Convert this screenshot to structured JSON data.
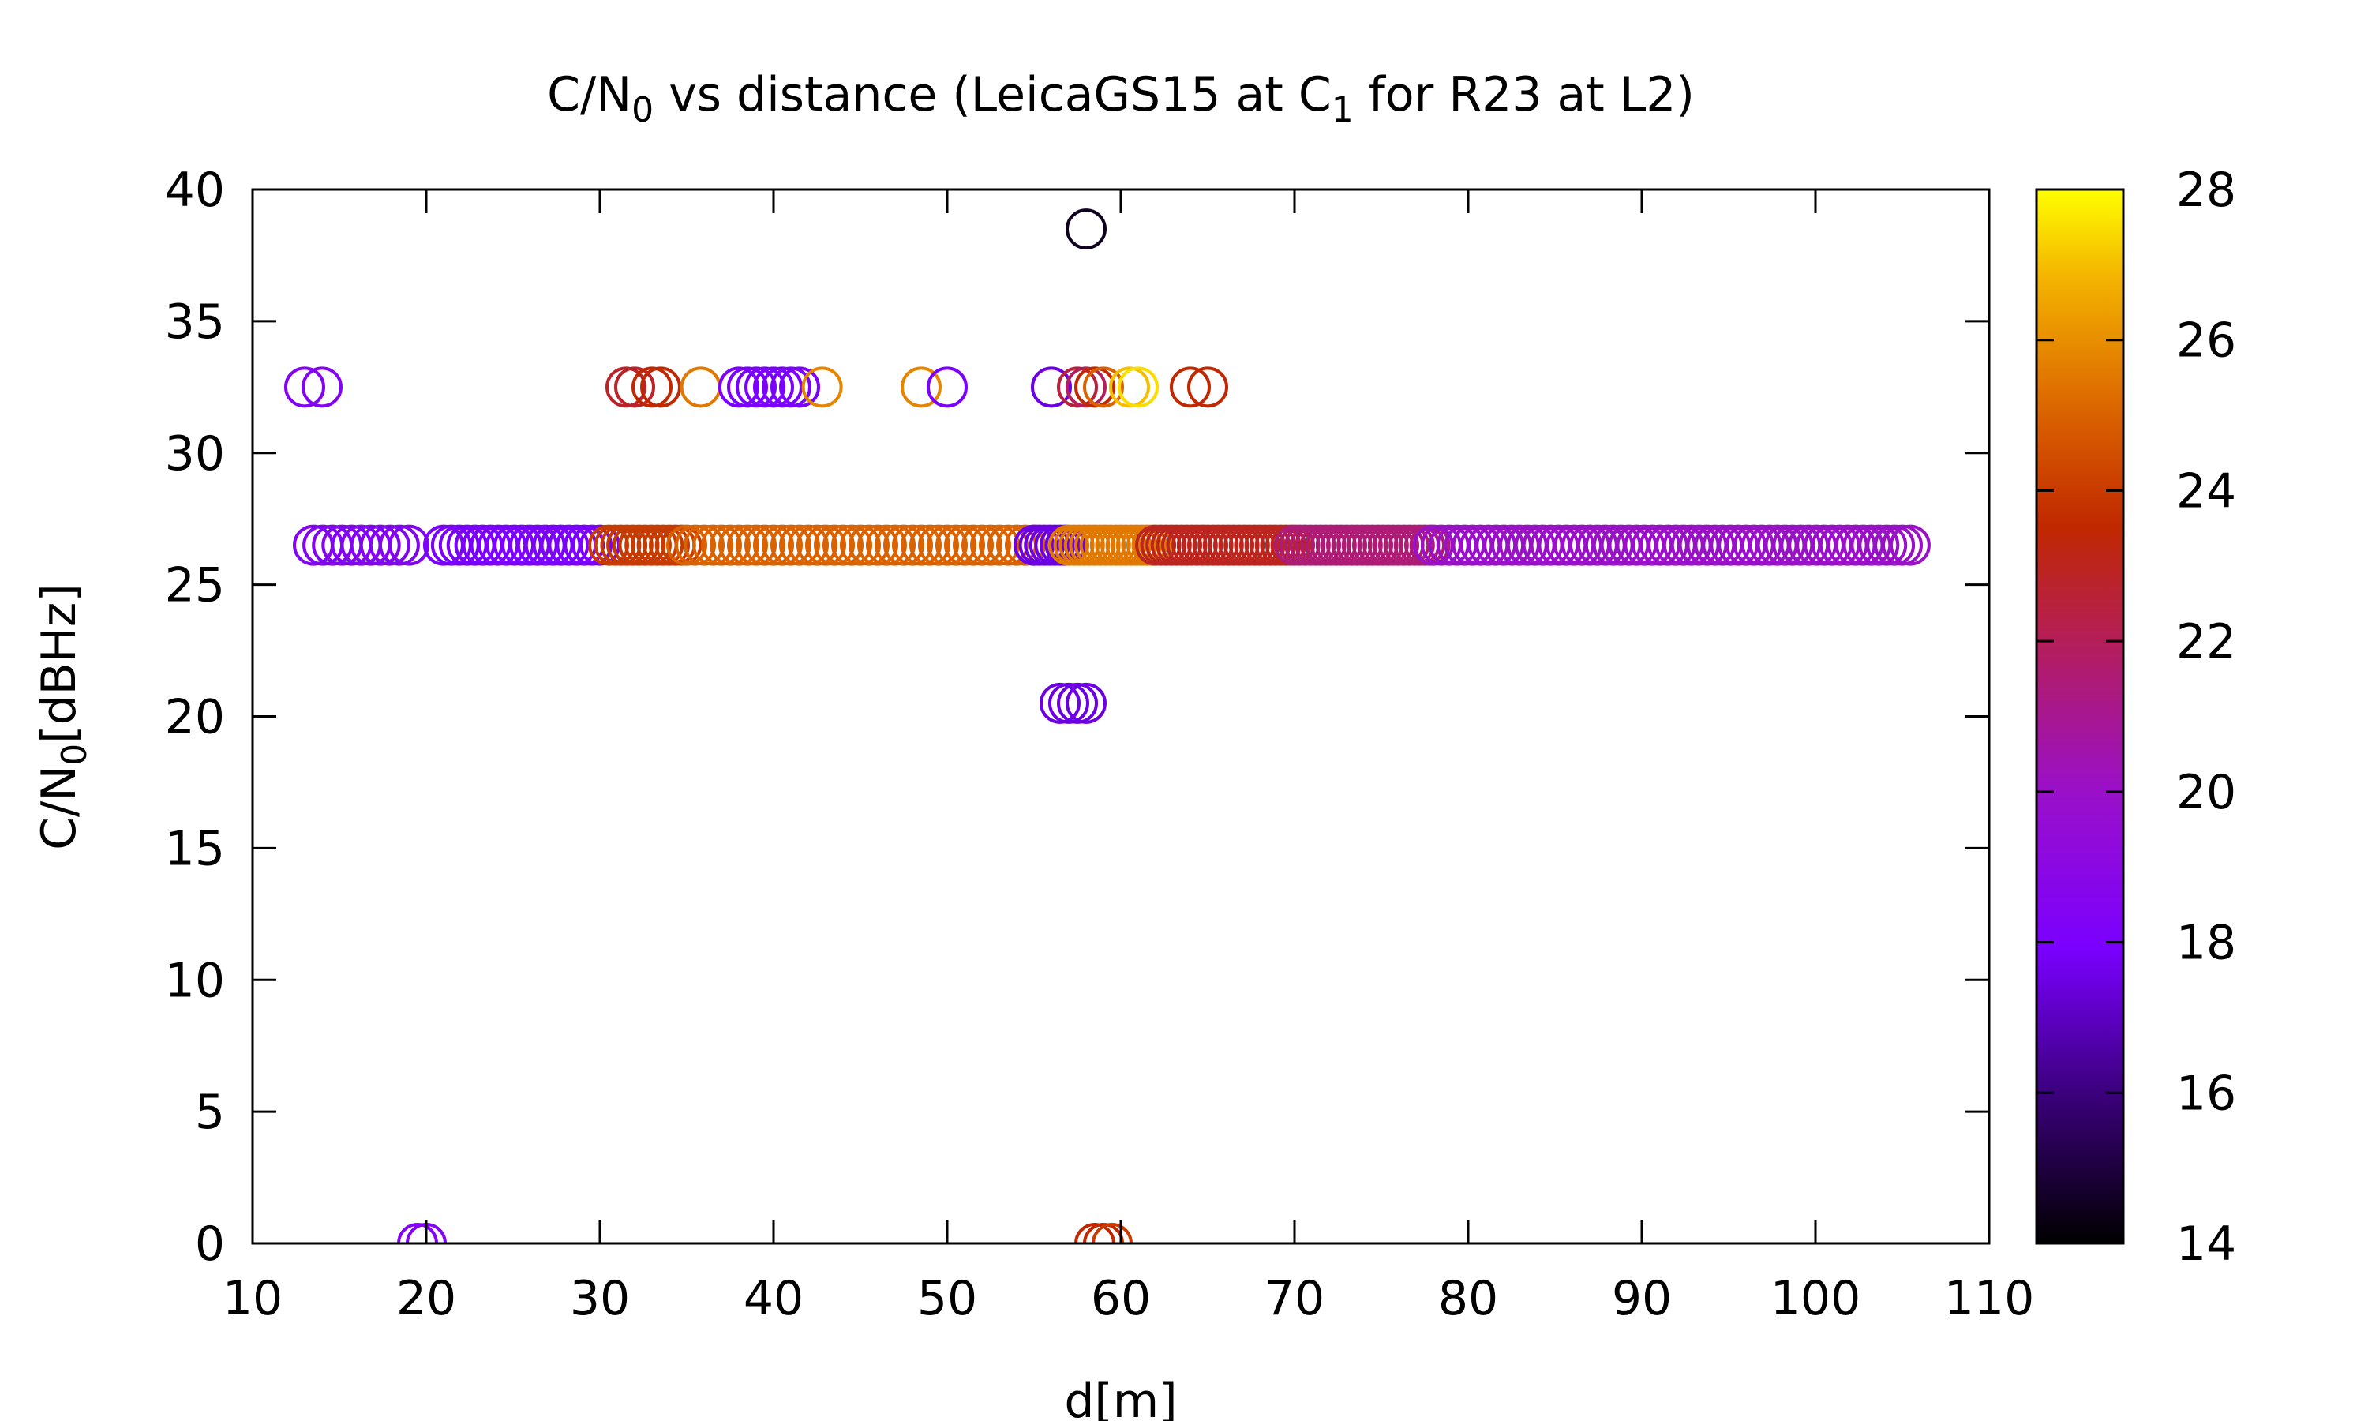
{
  "chart_data": {
    "type": "scatter",
    "title_parts": {
      "a": "C/N",
      "a_sub": "0",
      "b": " vs distance (LeicaGS15 at C",
      "b_sub": "1",
      "c": " for R23 at L2)"
    },
    "xlabel": "d[m]",
    "ylabel_parts": {
      "main": "C/N",
      "sub": "0",
      "rest": "[dBHz]"
    },
    "xlim": [
      10,
      110
    ],
    "ylim": [
      0,
      40
    ],
    "cblim": [
      14,
      28
    ],
    "x_ticks": [
      "10",
      "20",
      "30",
      "40",
      "50",
      "60",
      "70",
      "80",
      "90",
      "100",
      "110"
    ],
    "y_ticks": [
      "0",
      "5",
      "10",
      "15",
      "20",
      "25",
      "30",
      "35",
      "40"
    ],
    "cb_ticks": [
      "14",
      "16",
      "18",
      "20",
      "22",
      "24",
      "26",
      "28"
    ],
    "palette": "black-purple-red-orange-yellow",
    "marker": "open circle",
    "grid": false,
    "colorbar": "right",
    "points": [
      [
        58.0,
        38.5,
        14.5
      ],
      [
        13.0,
        32.5,
        18.5
      ],
      [
        14.0,
        32.5,
        18.5
      ],
      [
        31.5,
        32.5,
        22.8
      ],
      [
        32.0,
        32.5,
        22.8
      ],
      [
        33.0,
        32.5,
        23.5
      ],
      [
        33.5,
        32.5,
        23.5
      ],
      [
        35.8,
        32.5,
        25.5
      ],
      [
        38.0,
        32.5,
        18.0
      ],
      [
        38.5,
        32.5,
        18.0
      ],
      [
        39.0,
        32.5,
        18.0
      ],
      [
        39.5,
        32.5,
        18.0
      ],
      [
        40.0,
        32.5,
        18.0
      ],
      [
        40.5,
        32.5,
        18.0
      ],
      [
        41.0,
        32.5,
        18.0
      ],
      [
        41.5,
        32.5,
        18.0
      ],
      [
        42.8,
        32.5,
        25.8
      ],
      [
        48.5,
        32.5,
        25.8
      ],
      [
        50.0,
        32.5,
        18.0
      ],
      [
        56.0,
        32.5,
        17.5
      ],
      [
        57.5,
        32.5,
        22.5
      ],
      [
        58.0,
        32.5,
        22.0
      ],
      [
        58.5,
        32.5,
        23.5
      ],
      [
        59.0,
        32.5,
        25.0
      ],
      [
        60.5,
        32.5,
        27.0
      ],
      [
        61.0,
        32.5,
        27.5
      ],
      [
        64.0,
        32.5,
        23.5
      ],
      [
        65.0,
        32.5,
        23.5
      ],
      [
        56.5,
        20.5,
        17.5
      ],
      [
        57.0,
        20.5,
        17.5
      ],
      [
        57.5,
        20.5,
        17.5
      ],
      [
        58.0,
        20.5,
        17.5
      ],
      [
        19.5,
        0.0,
        18.5
      ],
      [
        20.0,
        0.0,
        18.5
      ],
      [
        58.5,
        0.0,
        23.5
      ],
      [
        59.0,
        0.0,
        23.5
      ],
      [
        59.5,
        0.0,
        24.0
      ]
    ],
    "band": {
      "y": 26.5,
      "segments": [
        [
          13.5,
          19.5,
          0.55,
          18.5
        ],
        [
          21.0,
          30.0,
          0.45,
          18.0
        ],
        [
          30.5,
          35.0,
          0.35,
          24.0
        ],
        [
          35.0,
          55.0,
          0.5,
          25.0
        ],
        [
          55.0,
          57.0,
          0.3,
          17.5
        ],
        [
          57.0,
          62.0,
          0.3,
          25.5
        ],
        [
          62.0,
          70.0,
          0.3,
          23.0
        ],
        [
          70.0,
          78.0,
          0.3,
          21.5
        ],
        [
          78.0,
          105.5,
          0.45,
          20.0
        ]
      ]
    }
  }
}
